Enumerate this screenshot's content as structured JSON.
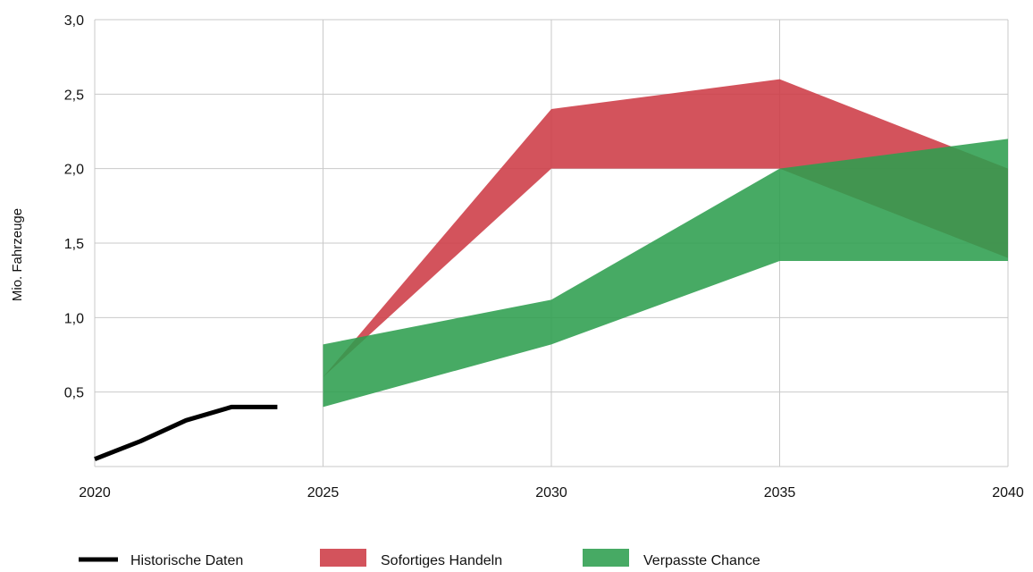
{
  "chart_data": {
    "type": "area",
    "title": "",
    "xlabel": "",
    "ylabel": "Mio. Fahrzeuge",
    "xlim": [
      2020,
      2040
    ],
    "ylim": [
      0,
      3.0
    ],
    "x_ticks": [
      2020,
      2025,
      2030,
      2035,
      2040
    ],
    "x_tick_labels": [
      "2020",
      "2025",
      "2030",
      "2035",
      "2040"
    ],
    "y_ticks": [
      0.5,
      1.0,
      1.5,
      2.0,
      2.5,
      3.0
    ],
    "y_tick_labels": [
      "0,5",
      "1,0",
      "1,5",
      "2,0",
      "2,5",
      "3,0"
    ],
    "grid": true,
    "legend_position": "bottom",
    "series": [
      {
        "name": "Historische Daten",
        "kind": "line",
        "color": "#000000",
        "x": [
          2020,
          2021,
          2022,
          2023,
          2024
        ],
        "values": [
          0.05,
          0.17,
          0.31,
          0.4,
          0.4
        ]
      },
      {
        "name": "Sofortiges Handeln",
        "kind": "band",
        "color": "#cd3b45",
        "x": [
          2025,
          2030,
          2035,
          2040
        ],
        "upper": [
          0.6,
          2.4,
          2.6,
          2.0
        ],
        "lower": [
          0.6,
          2.0,
          2.0,
          1.4
        ]
      },
      {
        "name": "Verpasste Chance",
        "kind": "band",
        "color": "#2e9e4f",
        "x": [
          2025,
          2030,
          2035,
          2040
        ],
        "upper": [
          0.82,
          1.12,
          2.0,
          2.2
        ],
        "lower": [
          0.4,
          0.82,
          1.38,
          1.38
        ]
      }
    ]
  }
}
